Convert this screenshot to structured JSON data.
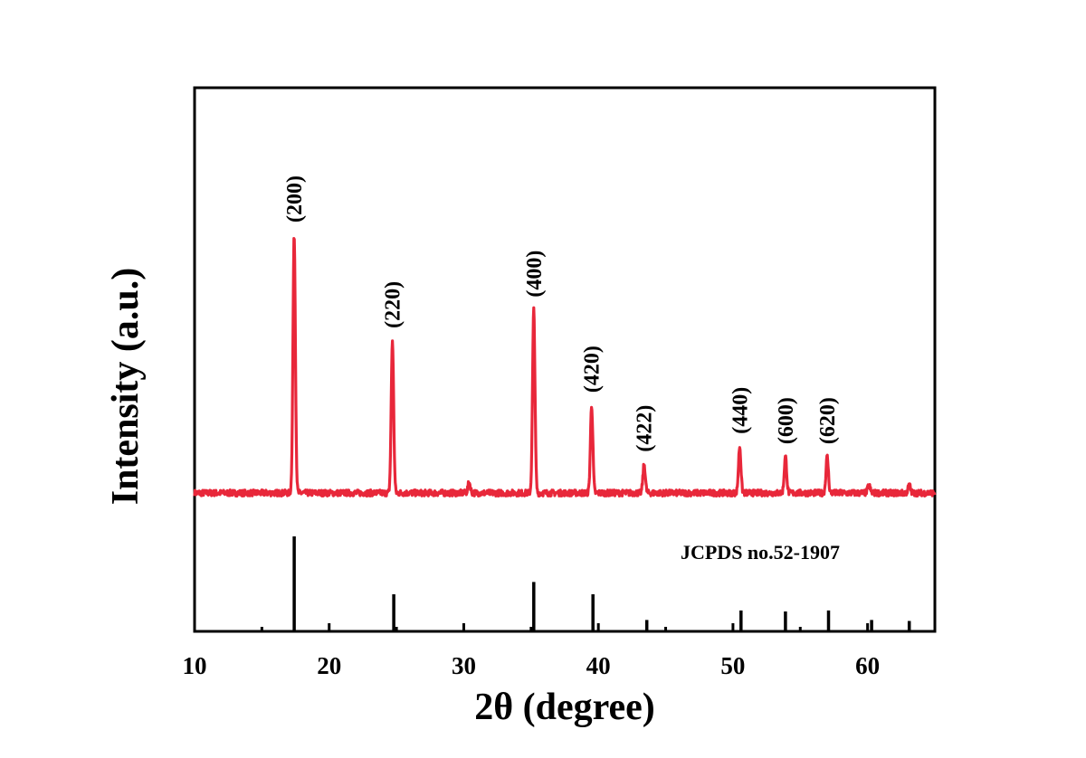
{
  "chart_data": {
    "type": "line",
    "xlabel": "2θ (degree)",
    "ylabel": "Intensity (a.u.)",
    "xlim": [
      10,
      65
    ],
    "x_ticks": [
      10,
      20,
      30,
      40,
      50,
      60
    ],
    "y_ticks_shown": false,
    "grid": false,
    "colors": {
      "pattern": "#e8273a",
      "reference": "#000000",
      "axis": "#000000"
    },
    "series": [
      {
        "style": "xrd-pattern",
        "baseline": 0.0,
        "noise_amplitude": 0.012,
        "peaks": [
          {
            "x": 17.4,
            "y": 1.0,
            "hkl": "(200)"
          },
          {
            "x": 24.7,
            "y": 0.59,
            "hkl": "(220)"
          },
          {
            "x": 30.4,
            "y": 0.04,
            "hkl": ""
          },
          {
            "x": 35.2,
            "y": 0.71,
            "hkl": "(400)"
          },
          {
            "x": 39.5,
            "y": 0.34,
            "hkl": "(420)"
          },
          {
            "x": 43.4,
            "y": 0.11,
            "hkl": "(422)"
          },
          {
            "x": 50.5,
            "y": 0.18,
            "hkl": "(440)"
          },
          {
            "x": 53.9,
            "y": 0.14,
            "hkl": "(600)"
          },
          {
            "x": 57.0,
            "y": 0.14,
            "hkl": "(620)"
          },
          {
            "x": 60.1,
            "y": 0.03,
            "hkl": ""
          },
          {
            "x": 63.1,
            "y": 0.03,
            "hkl": ""
          }
        ]
      },
      {
        "style": "reference-sticks",
        "sticks": [
          {
            "x": 17.4,
            "y": 1.0
          },
          {
            "x": 24.8,
            "y": 0.39
          },
          {
            "x": 35.2,
            "y": 0.52
          },
          {
            "x": 39.6,
            "y": 0.39
          },
          {
            "x": 43.6,
            "y": 0.12
          },
          {
            "x": 50.6,
            "y": 0.22
          },
          {
            "x": 53.9,
            "y": 0.21
          },
          {
            "x": 57.1,
            "y": 0.22
          },
          {
            "x": 60.3,
            "y": 0.12
          },
          {
            "x": 63.1,
            "y": 0.11
          }
        ]
      }
    ],
    "annotations": {
      "reference_label": "JCPDS no.52-1907"
    }
  }
}
